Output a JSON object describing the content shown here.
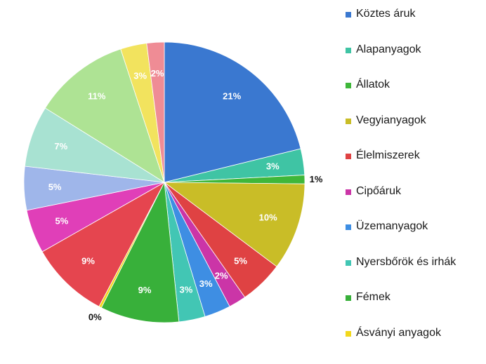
{
  "chart_data": {
    "type": "pie",
    "title": "",
    "slices": [
      {
        "name": "Köztes áruk",
        "value": 21,
        "label": "21%",
        "color": "#3a78d0"
      },
      {
        "name": "Alapanyagok",
        "value": 3,
        "label": "3%",
        "color": "#3fc4a4"
      },
      {
        "name": "Állatok",
        "value": 1,
        "label": "1%",
        "color": "#3fb73a"
      },
      {
        "name": "Vegyianyagok",
        "value": 10,
        "label": "10%",
        "color": "#c9bd27"
      },
      {
        "name": "Élelmiszerek",
        "value": 5,
        "label": "5%",
        "color": "#df4243"
      },
      {
        "name": "Cipőáruk",
        "value": 2,
        "label": "2%",
        "color": "#cb35a7"
      },
      {
        "name": "Üzemanyagok",
        "value": 3,
        "label": "3%",
        "color": "#3e8ee3"
      },
      {
        "name": "Nyersbőrök és irhák",
        "value": 3,
        "label": "3%",
        "color": "#42c6b4"
      },
      {
        "name": "Fémek",
        "value": 9,
        "label": "9%",
        "color": "#38b03a"
      },
      {
        "name": "Ásványi anyagok",
        "value": 0.3,
        "label": "0%",
        "color": "#f2d81c"
      },
      {
        "name": "",
        "value": 9,
        "label": "9%",
        "color": "#e5454f"
      },
      {
        "name": "",
        "value": 5,
        "label": "5%",
        "color": "#e03fb8"
      },
      {
        "name": "",
        "value": 5,
        "label": "5%",
        "color": "#9fb6ea"
      },
      {
        "name": "",
        "value": 7,
        "label": "7%",
        "color": "#a8e2d2"
      },
      {
        "name": "",
        "value": 11,
        "label": "11%",
        "color": "#aee394"
      },
      {
        "name": "",
        "value": 3,
        "label": "3%",
        "color": "#f2e35e"
      },
      {
        "name": "",
        "value": 2,
        "label": "2%",
        "color": "#ef8c95"
      }
    ],
    "legend": [
      {
        "name": "Köztes áruk",
        "color": "#3a78d0"
      },
      {
        "name": "Alapanyagok",
        "color": "#3fc4a4"
      },
      {
        "name": "Állatok",
        "color": "#3fb73a"
      },
      {
        "name": "Vegyianyagok",
        "color": "#c9bd27"
      },
      {
        "name": "Élelmiszerek",
        "color": "#df4243"
      },
      {
        "name": "Cipőáruk",
        "color": "#cb35a7"
      },
      {
        "name": "Üzemanyagok",
        "color": "#3e8ee3"
      },
      {
        "name": "Nyersbőrök és irhák",
        "color": "#42c6b4"
      },
      {
        "name": "Fémek",
        "color": "#38b03a"
      },
      {
        "name": "Ásványi anyagok",
        "color": "#f2d81c"
      }
    ],
    "legend_position": "right"
  }
}
